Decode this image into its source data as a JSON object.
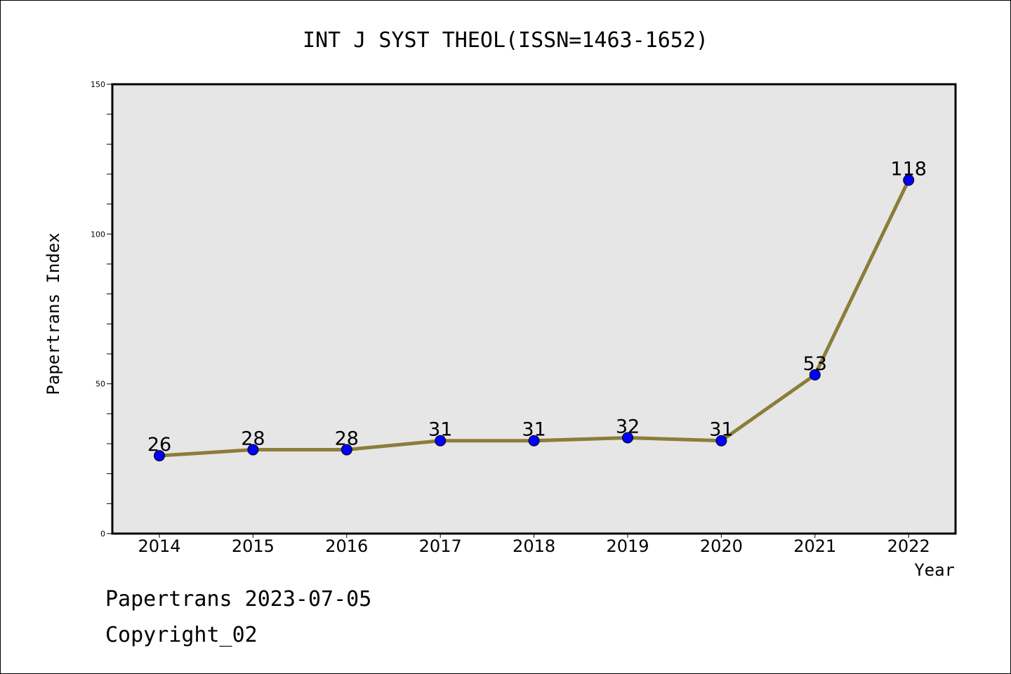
{
  "chart_data": {
    "type": "line",
    "title": "INT J SYST THEOL(ISSN=1463-1652)",
    "xlabel": "Year",
    "ylabel": "Papertrans Index",
    "categories": [
      "2014",
      "2015",
      "2016",
      "2017",
      "2018",
      "2019",
      "2020",
      "2021",
      "2022"
    ],
    "series": [
      {
        "values": [
          26,
          28,
          28,
          31,
          31,
          32,
          31,
          53,
          118
        ]
      }
    ],
    "data_labels": [
      "26",
      "28",
      "28",
      "31",
      "31",
      "32",
      "31",
      "53",
      "118"
    ],
    "ylim": [
      0,
      150
    ],
    "yticks": [
      "0",
      "50",
      "100",
      "150"
    ],
    "grid": false,
    "colors": {
      "line": "#8b7d3a",
      "marker": "#0000ff",
      "plot_bg": "#e6e6e6"
    }
  },
  "footer": {
    "line1": "Papertrans 2023-07-05",
    "line2": "Copyright_02"
  }
}
